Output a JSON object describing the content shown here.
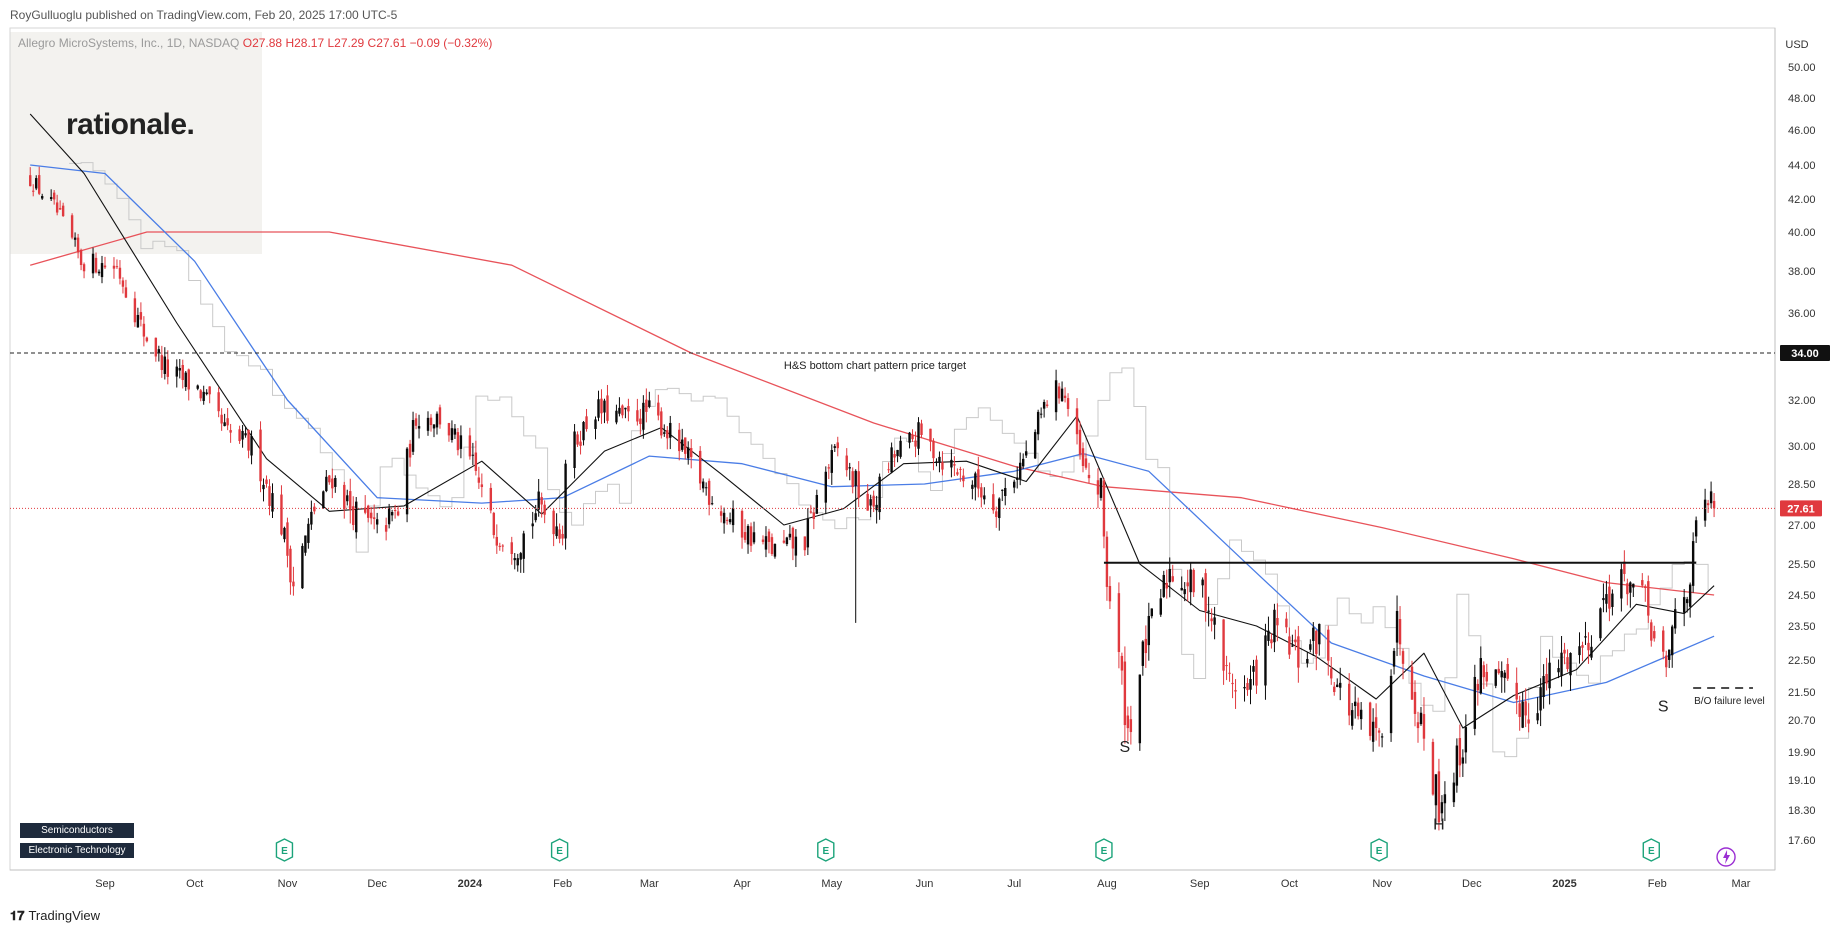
{
  "header": {
    "published": "RoyGulluoglu published on TradingView.com, Feb 20, 2025 17:00 UTC-5",
    "symbol": "Allegro MicroSystems, Inc., 1D, NASDAQ",
    "ohlc": {
      "o": "O27.88",
      "h": "H28.17",
      "l": "L27.29",
      "c": "C27.61",
      "chg": "−0.09 (−0.32%)"
    },
    "currency": "USD"
  },
  "logo_text": "rationale.",
  "brand": "TradingView",
  "tags": [
    "Semiconductors",
    "Electronic Technology"
  ],
  "colors": {
    "up": "#0a0a0a",
    "down": "#e0393e",
    "ma200": "#e8535a",
    "ma50": "#4a7de6",
    "ma20": "#111111",
    "last": "#e0393e"
  },
  "chart_data": {
    "type": "candlestick",
    "y_axis_labels": [
      "50.00",
      "48.00",
      "46.00",
      "44.00",
      "42.00",
      "40.00",
      "38.00",
      "36.00",
      "34.00",
      "32.00",
      "30.00",
      "28.50",
      "27.00",
      "25.50",
      "24.50",
      "23.50",
      "22.50",
      "21.50",
      "20.70",
      "19.90",
      "19.10",
      "18.30",
      "17.60"
    ],
    "y_axis_values": [
      50.0,
      48.0,
      46.0,
      44.0,
      42.0,
      40.0,
      38.0,
      36.0,
      34.0,
      32.0,
      30.0,
      28.5,
      27.0,
      25.5,
      24.5,
      23.5,
      22.5,
      21.5,
      20.7,
      19.9,
      19.1,
      18.3,
      17.6
    ],
    "x_axis_labels": [
      "Sep",
      "Oct",
      "Nov",
      "Dec",
      "2024",
      "Feb",
      "Mar",
      "Apr",
      "May",
      "Jun",
      "Jul",
      "Aug",
      "Sep",
      "Oct",
      "Nov",
      "Dec",
      "2025",
      "Feb",
      "Mar"
    ],
    "x_axis_dates": [
      "2023-09-01",
      "2023-10-01",
      "2023-11-01",
      "2023-12-01",
      "2024-01-01",
      "2024-02-01",
      "2024-03-01",
      "2024-04-01",
      "2024-05-01",
      "2024-06-01",
      "2024-07-01",
      "2024-08-01",
      "2024-09-01",
      "2024-10-01",
      "2024-11-01",
      "2024-12-01",
      "2025-01-01",
      "2025-02-01",
      "2025-03-01"
    ],
    "last_price": {
      "value": 27.61,
      "label": "27.61"
    },
    "target": {
      "value": 34.0,
      "label": "34.00",
      "text": "H&S bottom chart pattern price target"
    },
    "neckline": {
      "value": 25.55,
      "from": "2024-07-31",
      "to": "2025-02-14"
    },
    "bo_failure": {
      "value": 21.5,
      "from": "2025-02-13",
      "to": "2025-03-05",
      "text": "B/O failure level"
    },
    "pattern_labels": [
      {
        "text": "S",
        "date": "2024-08-07",
        "price": 19.9
      },
      {
        "text": "H",
        "date": "2024-11-20",
        "price": 17.85
      },
      {
        "text": "S",
        "date": "2025-02-03",
        "price": 20.95
      }
    ],
    "earnings_dates": [
      "2023-10-31",
      "2024-01-31",
      "2024-04-29",
      "2024-07-31",
      "2024-10-31",
      "2025-01-30"
    ],
    "dividend_date": "2025-02-24",
    "price_path": [
      [
        "2023-08-07",
        43.2
      ],
      [
        "2023-08-15",
        41.5
      ],
      [
        "2023-08-24",
        38.5
      ],
      [
        "2023-09-05",
        38.2
      ],
      [
        "2023-09-14",
        35.0
      ],
      [
        "2023-09-22",
        33.2
      ],
      [
        "2023-10-02",
        32.5
      ],
      [
        "2023-10-12",
        30.5
      ],
      [
        "2023-10-20",
        30.0
      ],
      [
        "2023-10-30",
        27.0
      ],
      [
        "2023-11-03",
        24.9
      ],
      [
        "2023-11-10",
        27.6
      ],
      [
        "2023-11-16",
        28.8
      ],
      [
        "2023-11-22",
        27.6
      ],
      [
        "2023-12-01",
        26.8
      ],
      [
        "2023-12-08",
        27.5
      ],
      [
        "2023-12-14",
        31.3
      ],
      [
        "2023-12-22",
        31.2
      ],
      [
        "2024-01-02",
        29.2
      ],
      [
        "2024-01-09",
        26.8
      ],
      [
        "2024-01-17",
        26.2
      ],
      [
        "2024-01-24",
        27.7
      ],
      [
        "2024-02-01",
        26.8
      ],
      [
        "2024-02-02",
        29.5
      ],
      [
        "2024-02-12",
        31.6
      ],
      [
        "2024-02-22",
        31.2
      ],
      [
        "2024-03-01",
        31.5
      ],
      [
        "2024-03-08",
        30.5
      ],
      [
        "2024-03-19",
        28.5
      ],
      [
        "2024-03-28",
        27.2
      ],
      [
        "2024-04-05",
        26.5
      ],
      [
        "2024-04-12",
        26.0
      ],
      [
        "2024-04-22",
        26.4
      ],
      [
        "2024-04-29",
        29.0
      ],
      [
        "2024-05-03",
        29.8
      ],
      [
        "2024-05-09",
        28.5
      ],
      [
        "2024-05-14",
        27.5
      ],
      [
        "2024-05-21",
        29.5
      ],
      [
        "2024-05-30",
        30.5
      ],
      [
        "2024-06-07",
        29.5
      ],
      [
        "2024-06-17",
        28.6
      ],
      [
        "2024-06-25",
        27.8
      ],
      [
        "2024-07-05",
        29.6
      ],
      [
        "2024-07-12",
        32.0
      ],
      [
        "2024-07-17",
        32.6
      ],
      [
        "2024-07-24",
        29.0
      ],
      [
        "2024-07-30",
        28.2
      ],
      [
        "2024-08-01",
        25.0
      ],
      [
        "2024-08-05",
        22.5
      ],
      [
        "2024-08-08",
        20.4
      ],
      [
        "2024-08-14",
        23.0
      ],
      [
        "2024-08-22",
        25.3
      ],
      [
        "2024-09-03",
        24.5
      ],
      [
        "2024-09-10",
        22.0
      ],
      [
        "2024-09-17",
        21.5
      ],
      [
        "2024-09-26",
        23.5
      ],
      [
        "2024-10-04",
        22.5
      ],
      [
        "2024-10-11",
        23.2
      ],
      [
        "2024-10-18",
        21.5
      ],
      [
        "2024-10-25",
        20.5
      ],
      [
        "2024-10-31",
        20.2
      ],
      [
        "2024-11-06",
        23.6
      ],
      [
        "2024-11-13",
        21.0
      ],
      [
        "2024-11-20",
        18.5
      ],
      [
        "2024-11-27",
        19.8
      ],
      [
        "2024-12-04",
        22.3
      ],
      [
        "2024-12-13",
        21.5
      ],
      [
        "2024-12-20",
        21.0
      ],
      [
        "2024-12-31",
        22.5
      ],
      [
        "2025-01-08",
        23.0
      ],
      [
        "2025-01-15",
        24.5
      ],
      [
        "2025-01-22",
        25.0
      ],
      [
        "2025-01-28",
        24.2
      ],
      [
        "2025-01-31",
        23.0
      ],
      [
        "2025-02-04",
        22.0
      ],
      [
        "2025-02-07",
        24.0
      ],
      [
        "2025-02-12",
        25.0
      ],
      [
        "2025-02-14",
        26.8
      ],
      [
        "2025-02-18",
        27.9
      ],
      [
        "2025-02-20",
        27.61
      ]
    ],
    "ma200_path": [
      [
        "2023-08-07",
        38.3
      ],
      [
        "2023-09-15",
        40.0
      ],
      [
        "2023-11-15",
        40.0
      ],
      [
        "2024-01-15",
        38.3
      ],
      [
        "2024-03-15",
        34.0
      ],
      [
        "2024-05-15",
        31.0
      ],
      [
        "2024-07-01",
        29.2
      ],
      [
        "2024-07-31",
        28.4
      ],
      [
        "2024-09-15",
        28.0
      ],
      [
        "2024-11-01",
        26.9
      ],
      [
        "2024-12-15",
        25.7
      ],
      [
        "2025-01-15",
        24.9
      ],
      [
        "2025-02-20",
        24.5
      ]
    ],
    "ma50_path": [
      [
        "2023-08-07",
        44.0
      ],
      [
        "2023-09-01",
        43.5
      ],
      [
        "2023-10-01",
        38.5
      ],
      [
        "2023-11-01",
        32.0
      ],
      [
        "2023-12-01",
        28.0
      ],
      [
        "2024-01-05",
        27.8
      ],
      [
        "2024-02-01",
        28.0
      ],
      [
        "2024-03-01",
        29.6
      ],
      [
        "2024-04-01",
        29.3
      ],
      [
        "2024-05-01",
        28.4
      ],
      [
        "2024-06-01",
        28.5
      ],
      [
        "2024-07-01",
        29.0
      ],
      [
        "2024-07-24",
        29.7
      ],
      [
        "2024-08-15",
        29.0
      ],
      [
        "2024-09-15",
        25.7
      ],
      [
        "2024-10-15",
        23.0
      ],
      [
        "2024-11-15",
        22.0
      ],
      [
        "2024-12-15",
        21.2
      ],
      [
        "2025-01-15",
        21.8
      ],
      [
        "2025-02-20",
        23.2
      ]
    ],
    "ma20_path": [
      [
        "2023-08-07",
        47.0
      ],
      [
        "2023-08-25",
        43.5
      ],
      [
        "2023-09-25",
        35.5
      ],
      [
        "2023-10-25",
        29.5
      ],
      [
        "2023-11-15",
        27.5
      ],
      [
        "2023-12-10",
        27.7
      ],
      [
        "2024-01-05",
        29.4
      ],
      [
        "2024-01-25",
        27.4
      ],
      [
        "2024-02-15",
        29.8
      ],
      [
        "2024-03-05",
        30.8
      ],
      [
        "2024-03-25",
        28.9
      ],
      [
        "2024-04-15",
        27.0
      ],
      [
        "2024-05-05",
        27.6
      ],
      [
        "2024-05-25",
        29.3
      ],
      [
        "2024-06-15",
        29.4
      ],
      [
        "2024-07-05",
        28.6
      ],
      [
        "2024-07-22",
        31.3
      ],
      [
        "2024-08-12",
        25.5
      ],
      [
        "2024-09-01",
        24.0
      ],
      [
        "2024-09-20",
        23.5
      ],
      [
        "2024-10-10",
        22.6
      ],
      [
        "2024-10-30",
        21.3
      ],
      [
        "2024-11-15",
        22.7
      ],
      [
        "2024-11-28",
        20.5
      ],
      [
        "2024-12-15",
        21.4
      ],
      [
        "2025-01-05",
        22.2
      ],
      [
        "2025-01-25",
        24.2
      ],
      [
        "2025-02-10",
        23.9
      ],
      [
        "2025-02-20",
        24.8
      ]
    ]
  }
}
